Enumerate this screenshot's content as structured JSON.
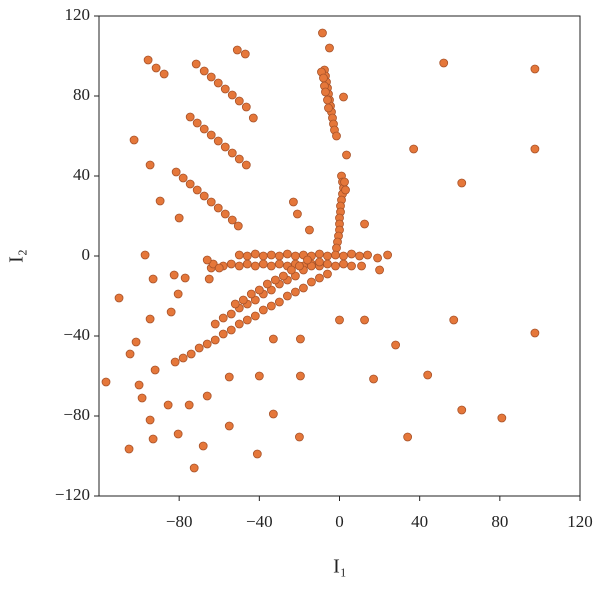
{
  "chart_data": {
    "type": "scatter",
    "xlabel": "I₁",
    "ylabel": "I₂",
    "color": "#e5773a",
    "edgecolor": "#a8532a",
    "xlim": [
      -120,
      120
    ],
    "ylim": [
      -120,
      120
    ],
    "xticks": [
      {
        "value": -80,
        "label": "−80"
      },
      {
        "value": -40,
        "label": "−40"
      },
      0,
      40,
      80,
      120
    ],
    "yticks": [
      {
        "value": -120,
        "label": "−120"
      },
      {
        "value": -80,
        "label": "−80"
      },
      {
        "value": -40,
        "label": "−40"
      },
      0,
      40,
      80,
      120
    ],
    "x": [
      -95.5,
      -91.5,
      -87.5,
      -51,
      -47,
      -71.5,
      -67.5,
      -64,
      -60.5,
      -57,
      -53.5,
      -50,
      -46.5,
      -43,
      -74.5,
      -71,
      -67.5,
      -64,
      -60.5,
      -57,
      -53.5,
      -50,
      -46.5,
      -81.5,
      -78,
      -74.5,
      -71,
      -67.5,
      -64,
      -60.5,
      -57,
      -53.5,
      -50.5,
      -102.5,
      -94.5,
      -89.5,
      -80,
      -97,
      -93,
      -82.5,
      -77,
      -80.5,
      -110,
      -84,
      -94.5,
      -101.5,
      -104.5,
      -92,
      -116.5,
      -100,
      -98.5,
      -85.5,
      -94.5,
      -93,
      -105,
      -80.5,
      -75,
      -68,
      -72.5,
      -66,
      -55,
      -40,
      -19.5,
      -33,
      -55,
      -41,
      -20,
      -33,
      -19.5,
      0,
      12.5,
      28,
      17,
      44,
      34,
      61,
      81,
      57,
      97.5,
      97.5,
      97.5,
      52,
      37,
      61,
      12.5,
      19,
      20,
      24,
      11,
      -23,
      -21,
      -15,
      -65,
      -64,
      -8.5,
      -5,
      2,
      3.5,
      -7.5,
      -7,
      -6.5,
      -6,
      -5.5,
      -5,
      -4.5,
      -4,
      -3.5,
      -3,
      -2.5,
      -1.5,
      -9,
      -8,
      -7.5,
      -7,
      -6,
      -5.5,
      1,
      1.5,
      2,
      1.5,
      1,
      0.5,
      0.5,
      0,
      0,
      0,
      -0.5,
      -1,
      -1.5,
      2.5,
      3,
      -50,
      -46,
      -42,
      -38,
      -34,
      -30,
      -26,
      -22,
      -18,
      -14,
      -10,
      -6,
      -2,
      2,
      6,
      10,
      14,
      -63,
      -58,
      -54,
      -50,
      -46,
      -42,
      -38,
      -34,
      -30,
      -26,
      -22,
      -18,
      -14,
      -10,
      -6,
      -2,
      2,
      6,
      -66,
      -60,
      -82,
      -78,
      -74,
      -70,
      -66,
      -62,
      -58,
      -54,
      -50,
      -46,
      -42,
      -38,
      -34,
      -30,
      -26,
      -22,
      -18,
      -14,
      -10,
      -6,
      -62,
      -58,
      -54,
      -50,
      -46,
      -42,
      -38,
      -34,
      -30,
      -26,
      -22,
      -18,
      -14,
      -10,
      -52,
      -48,
      -44,
      -40,
      -36,
      -32,
      -28,
      -24,
      -20,
      -16
    ],
    "values": [
      98,
      94,
      91,
      103,
      101,
      96,
      92.5,
      89.5,
      86.5,
      83.5,
      80.5,
      77.5,
      74.5,
      69,
      69.5,
      66.5,
      63.5,
      60.5,
      57.5,
      54.5,
      51.5,
      48.5,
      45.5,
      42,
      39,
      36,
      33,
      30,
      27,
      24,
      21,
      18,
      15,
      58,
      45.5,
      27.5,
      19,
      0.5,
      -11.5,
      -9.5,
      -11,
      -19,
      -21,
      -28,
      -31.5,
      -43,
      -49,
      -57,
      -63,
      -64.5,
      -71,
      -74.5,
      -82,
      -91.5,
      -96.5,
      -89,
      -74.5,
      -95,
      -106,
      -70,
      -60.5,
      -60,
      -60,
      -79,
      -85,
      -99,
      -90.5,
      -41.5,
      -41.5,
      -32,
      -32,
      -44.5,
      -61.5,
      -59.5,
      -90.5,
      -77,
      -81,
      -32,
      -38.5,
      53.5,
      93.5,
      96.5,
      53.5,
      36.5,
      16,
      -1,
      -7,
      0.5,
      -5,
      27,
      21,
      13,
      -11.5,
      -6,
      111.5,
      104,
      79.5,
      50.5,
      93,
      90,
      87,
      84,
      81,
      78,
      75,
      72,
      69,
      66,
      63,
      60,
      92,
      89,
      85,
      82,
      78,
      74,
      40,
      37,
      34,
      31,
      28,
      25,
      22,
      19,
      16,
      13,
      10,
      7,
      4,
      37,
      33,
      0.5,
      0,
      1,
      0,
      0.5,
      0,
      1,
      0,
      0.5,
      0,
      1,
      0,
      0.5,
      0,
      1,
      0,
      0.5,
      -4,
      -5,
      -4,
      -5,
      -4,
      -5,
      -4,
      -5,
      -4,
      -5,
      -4,
      -5,
      -4,
      -5,
      -4,
      -5,
      -4,
      -5,
      -2,
      -6,
      -53,
      -51,
      -49,
      -46,
      -44,
      -42,
      -39,
      -37,
      -34,
      -32,
      -30,
      -27,
      -25,
      -23,
      -20,
      -18,
      -16,
      -13,
      -11,
      -9,
      -34,
      -31,
      -29,
      -26,
      -24,
      -22,
      -19,
      -17,
      -14,
      -12,
      -10,
      -7,
      -5,
      -3,
      -24,
      -22,
      -19,
      -17,
      -14,
      -12,
      -10,
      -7,
      -5,
      -2
    ]
  }
}
